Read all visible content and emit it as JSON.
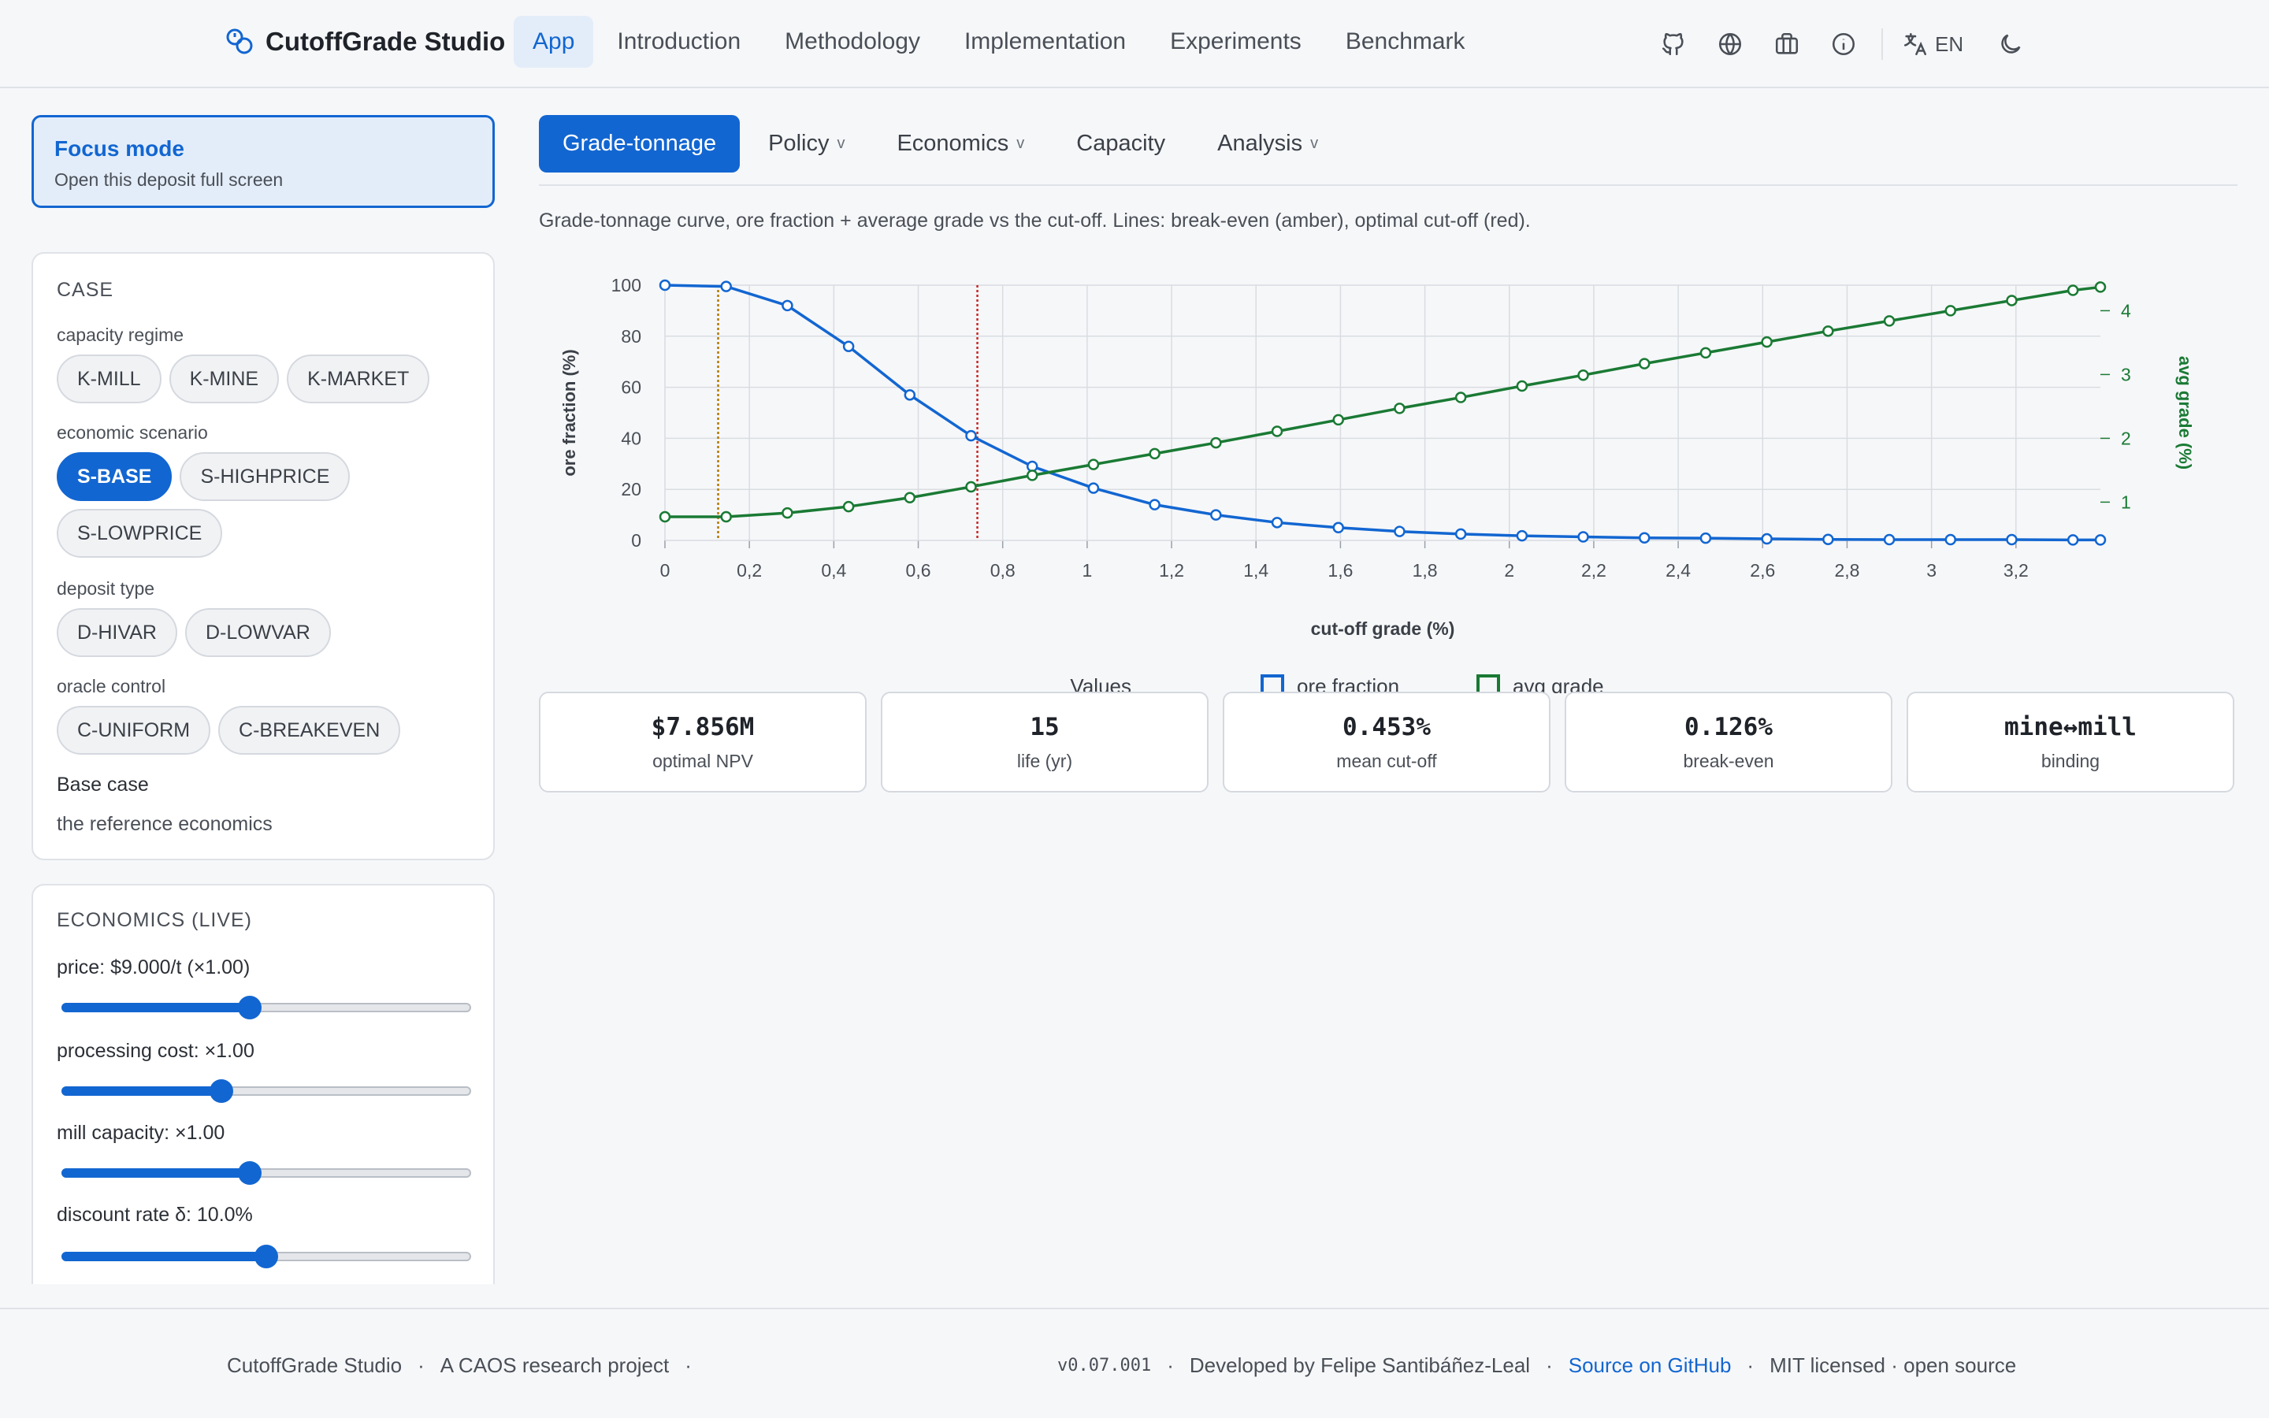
{
  "header": {
    "brand": "CutoffGrade Studio",
    "nav": [
      "App",
      "Introduction",
      "Methodology",
      "Implementation",
      "Experiments",
      "Benchmark"
    ],
    "active_nav": "App",
    "icons": [
      "github-icon",
      "globe-icon",
      "briefcase-icon",
      "info-icon",
      "translate-icon",
      "moon-icon"
    ],
    "language": "EN"
  },
  "sidebar": {
    "focus": {
      "title": "Focus mode",
      "subtitle": "Open this deposit full screen"
    },
    "case": {
      "title": "CASE",
      "groups": [
        {
          "label": "capacity regime",
          "options": [
            "K-MILL",
            "K-MINE",
            "K-MARKET"
          ],
          "selected": ""
        },
        {
          "label": "economic scenario",
          "options": [
            "S-BASE",
            "S-HIGHPRICE",
            "S-LOWPRICE"
          ],
          "selected": "S-BASE"
        },
        {
          "label": "deposit type",
          "options": [
            "D-HIVAR",
            "D-LOWVAR"
          ],
          "selected": ""
        },
        {
          "label": "oracle control",
          "options": [
            "C-UNIFORM",
            "C-BREAKEVEN"
          ],
          "selected": ""
        }
      ],
      "case_name": "Base case",
      "case_desc": "the reference economics"
    },
    "economics": {
      "title": "ECONOMICS (LIVE)",
      "sliders": [
        {
          "label": "price: $9.000/t (×1.00)",
          "value": 0.46
        },
        {
          "label": "processing cost: ×1.00",
          "value": 0.39
        },
        {
          "label": "mill capacity: ×1.00",
          "value": 0.46
        },
        {
          "label": "discount rate δ: 10.0%",
          "value": 0.5
        }
      ]
    }
  },
  "main": {
    "tabs": [
      {
        "label": "Grade-tonnage",
        "dropdown": false
      },
      {
        "label": "Policy",
        "dropdown": true
      },
      {
        "label": "Economics",
        "dropdown": true
      },
      {
        "label": "Capacity",
        "dropdown": false
      },
      {
        "label": "Analysis",
        "dropdown": true
      }
    ],
    "active_tab": "Grade-tonnage",
    "caption": "Grade-tonnage curve, ore fraction + average grade vs the cut-off. Lines: break-even (amber), optimal cut-off (red).",
    "stats": [
      {
        "value": "$7.856M",
        "label": "optimal NPV"
      },
      {
        "value": "15",
        "label": "life (yr)"
      },
      {
        "value": "0.453%",
        "label": "mean cut-off"
      },
      {
        "value": "0.126%",
        "label": "break-even"
      },
      {
        "value": "mine↔mill",
        "label": "binding"
      }
    ]
  },
  "chart_data": {
    "type": "line",
    "xlabel": "cut-off grade (%)",
    "ylabel_left": "ore fraction (%)",
    "ylabel_right": "avg grade (%)",
    "x_ticks": [
      "0",
      "0,2",
      "0,4",
      "0,6",
      "0,8",
      "1",
      "1,2",
      "1,4",
      "1,6",
      "1,8",
      "2",
      "2,2",
      "2,4",
      "2,6",
      "2,8",
      "3",
      "3,2"
    ],
    "y_left_ticks": [
      "0",
      "20",
      "40",
      "60",
      "80",
      "100"
    ],
    "y_right_ticks": [
      "1",
      "2",
      "3",
      "4"
    ],
    "xlim": [
      0,
      3.4
    ],
    "ylim_left": [
      0,
      100
    ],
    "ylim_right": [
      0.4,
      4.4
    ],
    "grid": true,
    "x": [
      0,
      0.145,
      0.29,
      0.435,
      0.58,
      0.725,
      0.87,
      1.015,
      1.16,
      1.305,
      1.45,
      1.595,
      1.74,
      1.885,
      2.03,
      2.175,
      2.32,
      2.465,
      2.61,
      2.755,
      2.9,
      3.045,
      3.19,
      3.335,
      3.4
    ],
    "series": [
      {
        "axis": "left",
        "color": "#1266d1",
        "values": [
          100,
          99.5,
          92,
          76,
          57,
          41,
          29,
          20.5,
          14,
          10,
          7,
          5,
          3.5,
          2.5,
          1.8,
          1.4,
          1,
          0.9,
          0.6,
          0.4,
          0.3,
          0.3,
          0.3,
          0.2,
          0.2
        ]
      },
      {
        "axis": "right",
        "color": "#1a7a34",
        "values": [
          0.77,
          0.77,
          0.83,
          0.93,
          1.07,
          1.24,
          1.42,
          1.59,
          1.76,
          1.93,
          2.11,
          2.29,
          2.47,
          2.64,
          2.82,
          2.99,
          3.17,
          3.34,
          3.51,
          3.68,
          3.84,
          4.0,
          4.16,
          4.32,
          4.37
        ]
      }
    ],
    "vlines": [
      {
        "x": 0.126,
        "color": "#b07a00"
      },
      {
        "x": 0.74,
        "color": "#c62828"
      }
    ],
    "legend_labels": [
      "Values",
      "ore fraction",
      "avg grade"
    ]
  },
  "footer": {
    "left": [
      "CutoffGrade Studio",
      "·",
      "A CAOS research project",
      "·"
    ],
    "version": "v0.07.001",
    "dot": "·",
    "developer": "Developed by Felipe Santibáñez-Leal",
    "github": "Source on GitHub",
    "license": "MIT licensed · open source"
  }
}
